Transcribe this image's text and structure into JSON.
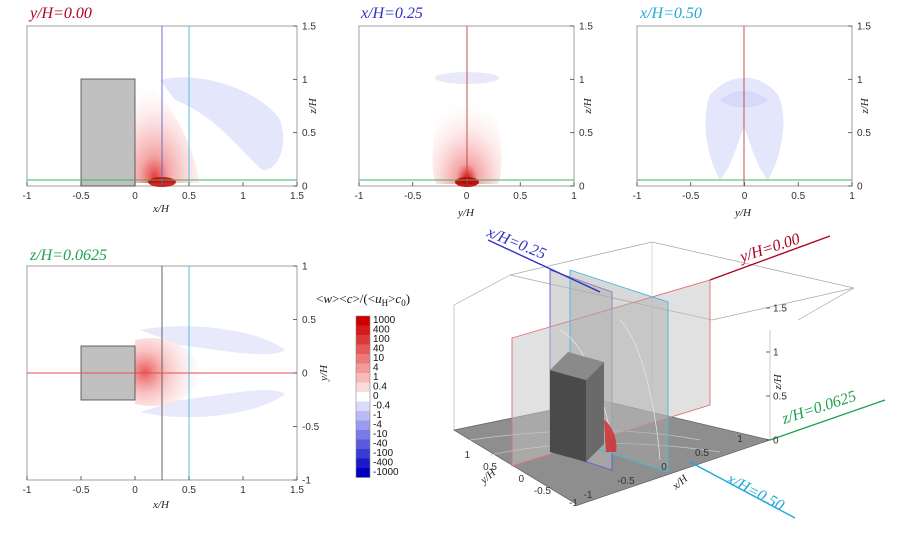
{
  "chart_data": [
    {
      "type": "heatmap",
      "title": "y/H=0.00",
      "title_color": "#b00020",
      "xlabel": "x/H",
      "ylabel": "z/H",
      "xlim": [
        -1,
        1.5
      ],
      "ylim": [
        0,
        1.5
      ],
      "xticks": [
        "-1",
        "-0.5",
        "0",
        "0.5",
        "1",
        "1.5"
      ],
      "yticks": [
        "0",
        "0.5",
        "1",
        "1.5"
      ],
      "building": {
        "x": [
          -0.5,
          0
        ],
        "z": [
          0,
          1
        ]
      },
      "guide_lines": [
        {
          "axis": "x",
          "value": 0.25,
          "color": "#4040c0"
        },
        {
          "axis": "x",
          "value": 0.5,
          "color": "#20a8d8"
        },
        {
          "axis": "z",
          "value": 0.0625,
          "color": "#20a050"
        }
      ]
    },
    {
      "type": "heatmap",
      "title": "x/H=0.25",
      "title_color": "#3030c0",
      "xlabel": "y/H",
      "ylabel": "z/H",
      "xlim": [
        -1,
        1
      ],
      "ylim": [
        0,
        1.5
      ],
      "xticks": [
        "-1",
        "-0.5",
        "0",
        "0.5",
        "1"
      ],
      "yticks": [
        "0",
        "0.5",
        "1",
        "1.5"
      ],
      "guide_lines": [
        {
          "axis": "x",
          "value": 0,
          "color": "#b00020"
        },
        {
          "axis": "z",
          "value": 0.0625,
          "color": "#20a050"
        }
      ]
    },
    {
      "type": "heatmap",
      "title": "x/H=0.50",
      "title_color": "#20a8d8",
      "xlabel": "y/H",
      "ylabel": "z/H",
      "xlim": [
        -1,
        1
      ],
      "ylim": [
        0,
        1.5
      ],
      "xticks": [
        "-1",
        "-0.5",
        "0",
        "0.5",
        "1"
      ],
      "yticks": [
        "0",
        "0.5",
        "1",
        "1.5"
      ],
      "guide_lines": [
        {
          "axis": "x",
          "value": 0,
          "color": "#b00020"
        },
        {
          "axis": "z",
          "value": 0.0625,
          "color": "#20a050"
        }
      ]
    },
    {
      "type": "heatmap",
      "title": "z/H=0.0625",
      "title_color": "#20a050",
      "xlabel": "x/H",
      "ylabel": "y/H",
      "xlim": [
        -1,
        1.5
      ],
      "ylim": [
        -1,
        1
      ],
      "xticks": [
        "-1",
        "-0.5",
        "0",
        "0.5",
        "1",
        "1.5"
      ],
      "yticks": [
        "-1",
        "-0.5",
        "0",
        "0.5",
        "1"
      ],
      "building": {
        "x": [
          -0.5,
          0
        ],
        "y": [
          -0.25,
          0.25
        ]
      },
      "guide_lines": [
        {
          "axis": "x",
          "value": 0.25,
          "color": "#555555"
        },
        {
          "axis": "x",
          "value": 0.5,
          "color": "#20a8d8"
        },
        {
          "axis": "y",
          "value": 0,
          "color": "#e03030"
        }
      ]
    }
  ],
  "colorbar": {
    "label": "<w><c>/(<u_H>c_0)",
    "label_parts": {
      "open1": "<",
      "w": "w",
      "mid": "><",
      "c": "c",
      "close": ">/(<",
      "u": "u",
      "sub_h": "H",
      "close2": ">",
      "c2": "c",
      "sub_0": "0",
      "end": ")"
    },
    "levels": [
      "1000",
      "400",
      "100",
      "40",
      "10",
      "4",
      "1",
      "0.4",
      "0",
      "-0.4",
      "-1",
      "-4",
      "-10",
      "-40",
      "-100",
      "-400",
      "-1000"
    ],
    "colors": [
      "#cc0000",
      "#d41a1a",
      "#dc3a3a",
      "#e45a5a",
      "#ec7a7a",
      "#f29a9a",
      "#f7baba",
      "#fbdada",
      "#ffffff",
      "#dadafb",
      "#babaf5",
      "#9a9aee",
      "#7a7ae6",
      "#5a5add",
      "#3a3ad4",
      "#1a1acb",
      "#0000c0"
    ]
  },
  "view3d": {
    "slice_labels": [
      {
        "text": "x/H=0.25",
        "color": "#3030c0"
      },
      {
        "text": "y/H=0.00",
        "color": "#b00020"
      },
      {
        "text": "z/H=0.0625",
        "color": "#20a050"
      },
      {
        "text": "x/H=0.50",
        "color": "#20a8d8"
      }
    ],
    "z_ticks": [
      "0",
      "0.5",
      "1",
      "1.5"
    ],
    "y_ticks": [
      "-1",
      "-0.5",
      "0",
      "0.5",
      "1"
    ],
    "x_ticks": [
      "-1",
      "-0.5",
      "0",
      "0.5",
      "1"
    ],
    "xlabel": "x/H",
    "ylabel": "y/H",
    "zlabel": "z/H"
  }
}
